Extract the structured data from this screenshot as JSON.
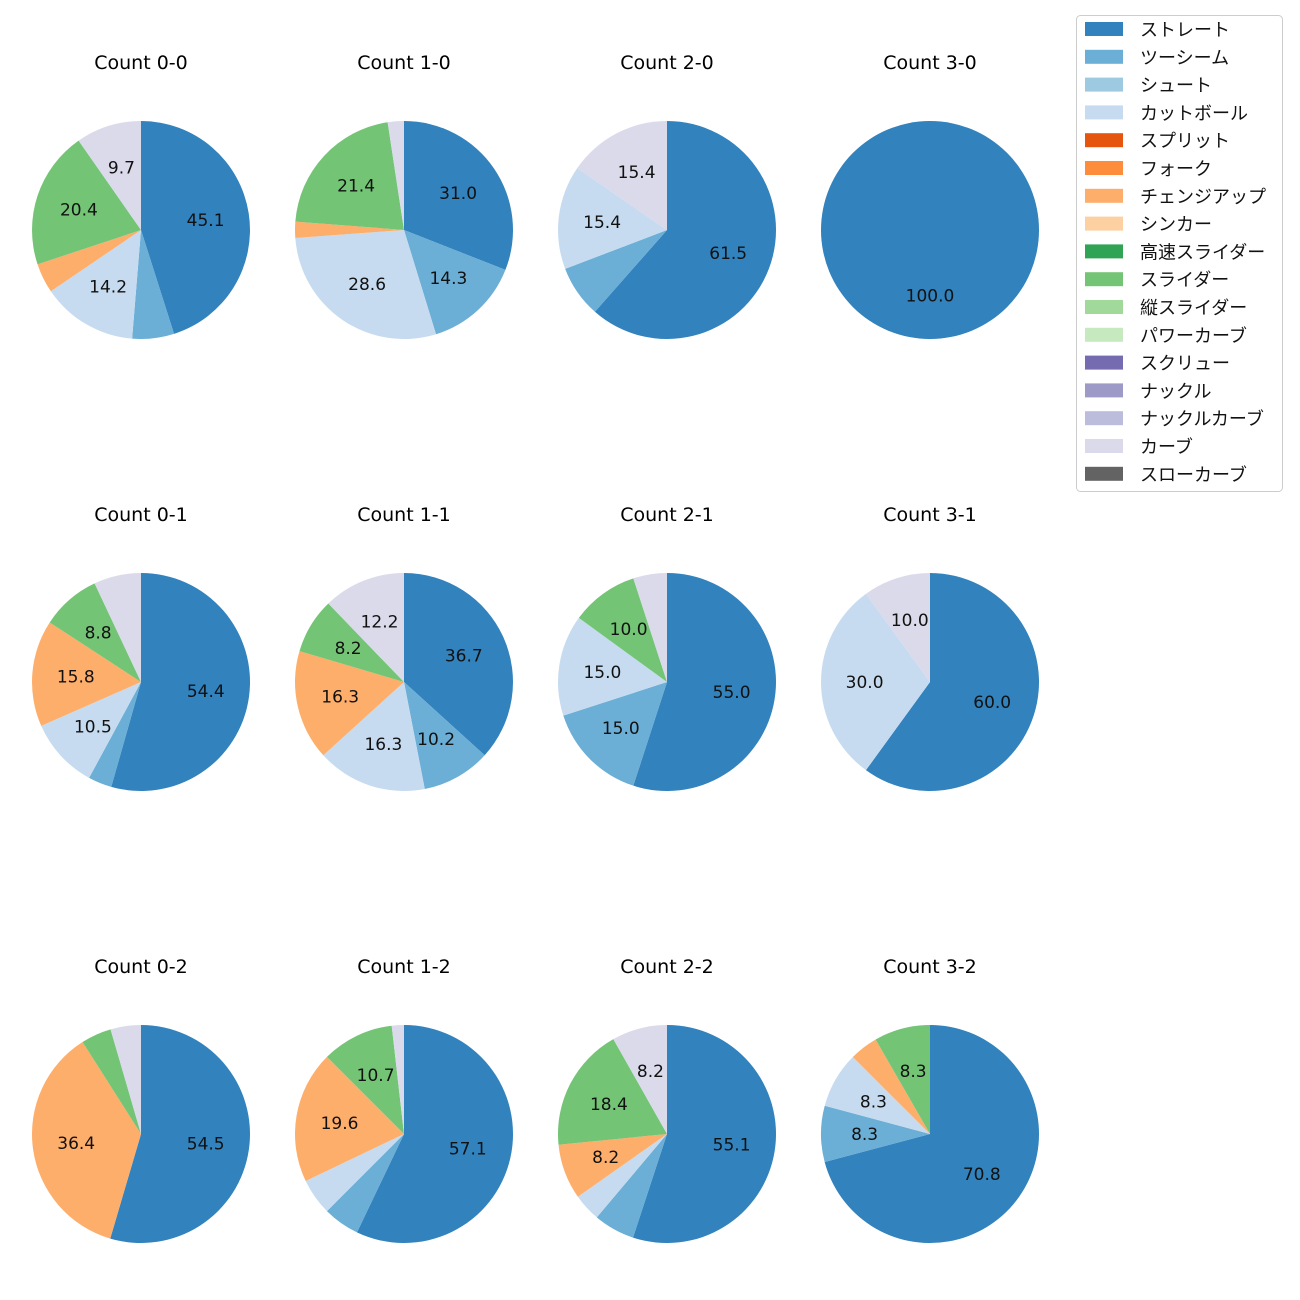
{
  "legend": {
    "items": [
      {
        "label": "ストレート",
        "color": "#3182bd"
      },
      {
        "label": "ツーシーム",
        "color": "#6baed6"
      },
      {
        "label": "シュート",
        "color": "#9ecae1"
      },
      {
        "label": "カットボール",
        "color": "#c6dbef"
      },
      {
        "label": "スプリット",
        "color": "#e6550d"
      },
      {
        "label": "フォーク",
        "color": "#fd8d3c"
      },
      {
        "label": "チェンジアップ",
        "color": "#fdae6b"
      },
      {
        "label": "シンカー",
        "color": "#fdd0a2"
      },
      {
        "label": "高速スライダー",
        "color": "#31a354"
      },
      {
        "label": "スライダー",
        "color": "#74c476"
      },
      {
        "label": "縦スライダー",
        "color": "#a1d99b"
      },
      {
        "label": "パワーカーブ",
        "color": "#c7e9c0"
      },
      {
        "label": "スクリュー",
        "color": "#756bb1"
      },
      {
        "label": "ナックル",
        "color": "#9e9ac8"
      },
      {
        "label": "ナックルカーブ",
        "color": "#bcbddc"
      },
      {
        "label": "カーブ",
        "color": "#dadaeb"
      },
      {
        "label": "スローカーブ",
        "color": "#636363"
      }
    ]
  },
  "chart_data": [
    {
      "type": "pie",
      "title": "Count 0-0",
      "slices": [
        {
          "name": "ストレート",
          "value": 45.1,
          "label": "45.1"
        },
        {
          "name": "ツーシーム",
          "value": 6.2,
          "label": ""
        },
        {
          "name": "カットボール",
          "value": 14.2,
          "label": "14.2"
        },
        {
          "name": "チェンジアップ",
          "value": 4.4,
          "label": ""
        },
        {
          "name": "スライダー",
          "value": 20.4,
          "label": "20.4"
        },
        {
          "name": "カーブ",
          "value": 9.7,
          "label": "9.7"
        }
      ]
    },
    {
      "type": "pie",
      "title": "Count 1-0",
      "slices": [
        {
          "name": "ストレート",
          "value": 31.0,
          "label": "31.0"
        },
        {
          "name": "ツーシーム",
          "value": 14.3,
          "label": "14.3"
        },
        {
          "name": "カットボール",
          "value": 28.6,
          "label": "28.6"
        },
        {
          "name": "チェンジアップ",
          "value": 2.4,
          "label": ""
        },
        {
          "name": "スライダー",
          "value": 21.4,
          "label": "21.4"
        },
        {
          "name": "カーブ",
          "value": 2.4,
          "label": ""
        }
      ]
    },
    {
      "type": "pie",
      "title": "Count 2-0",
      "slices": [
        {
          "name": "ストレート",
          "value": 61.5,
          "label": "61.5"
        },
        {
          "name": "ツーシーム",
          "value": 7.7,
          "label": ""
        },
        {
          "name": "カットボール",
          "value": 15.4,
          "label": "15.4"
        },
        {
          "name": "カーブ",
          "value": 15.4,
          "label": "15.4"
        }
      ]
    },
    {
      "type": "pie",
      "title": "Count 3-0",
      "slices": [
        {
          "name": "ストレート",
          "value": 100.0,
          "label": "100.0"
        }
      ]
    },
    {
      "type": "pie",
      "title": "Count 0-1",
      "slices": [
        {
          "name": "ストレート",
          "value": 54.4,
          "label": "54.4"
        },
        {
          "name": "ツーシーム",
          "value": 3.5,
          "label": ""
        },
        {
          "name": "カットボール",
          "value": 10.5,
          "label": "10.5"
        },
        {
          "name": "チェンジアップ",
          "value": 15.8,
          "label": "15.8"
        },
        {
          "name": "スライダー",
          "value": 8.8,
          "label": "8.8"
        },
        {
          "name": "カーブ",
          "value": 7.0,
          "label": ""
        }
      ]
    },
    {
      "type": "pie",
      "title": "Count 1-1",
      "slices": [
        {
          "name": "ストレート",
          "value": 36.7,
          "label": "36.7"
        },
        {
          "name": "ツーシーム",
          "value": 10.2,
          "label": "10.2"
        },
        {
          "name": "カットボール",
          "value": 16.3,
          "label": "16.3"
        },
        {
          "name": "チェンジアップ",
          "value": 16.3,
          "label": "16.3"
        },
        {
          "name": "スライダー",
          "value": 8.2,
          "label": "8.2"
        },
        {
          "name": "カーブ",
          "value": 12.2,
          "label": "12.2"
        }
      ]
    },
    {
      "type": "pie",
      "title": "Count 2-1",
      "slices": [
        {
          "name": "ストレート",
          "value": 55.0,
          "label": "55.0"
        },
        {
          "name": "ツーシーム",
          "value": 15.0,
          "label": "15.0"
        },
        {
          "name": "カットボール",
          "value": 15.0,
          "label": "15.0"
        },
        {
          "name": "スライダー",
          "value": 10.0,
          "label": "10.0"
        },
        {
          "name": "カーブ",
          "value": 5.0,
          "label": ""
        }
      ]
    },
    {
      "type": "pie",
      "title": "Count 3-1",
      "slices": [
        {
          "name": "ストレート",
          "value": 60.0,
          "label": "60.0"
        },
        {
          "name": "カットボール",
          "value": 30.0,
          "label": "30.0"
        },
        {
          "name": "カーブ",
          "value": 10.0,
          "label": "10.0"
        }
      ]
    },
    {
      "type": "pie",
      "title": "Count 0-2",
      "slices": [
        {
          "name": "ストレート",
          "value": 54.5,
          "label": "54.5"
        },
        {
          "name": "チェンジアップ",
          "value": 36.4,
          "label": "36.4"
        },
        {
          "name": "スライダー",
          "value": 4.5,
          "label": ""
        },
        {
          "name": "カーブ",
          "value": 4.5,
          "label": ""
        }
      ]
    },
    {
      "type": "pie",
      "title": "Count 1-2",
      "slices": [
        {
          "name": "ストレート",
          "value": 57.1,
          "label": "57.1"
        },
        {
          "name": "ツーシーム",
          "value": 5.4,
          "label": ""
        },
        {
          "name": "カットボール",
          "value": 5.4,
          "label": ""
        },
        {
          "name": "チェンジアップ",
          "value": 19.6,
          "label": "19.6"
        },
        {
          "name": "スライダー",
          "value": 10.7,
          "label": "10.7"
        },
        {
          "name": "カーブ",
          "value": 1.8,
          "label": ""
        }
      ]
    },
    {
      "type": "pie",
      "title": "Count 2-2",
      "slices": [
        {
          "name": "ストレート",
          "value": 55.1,
          "label": "55.1"
        },
        {
          "name": "ツーシーム",
          "value": 6.1,
          "label": ""
        },
        {
          "name": "カットボール",
          "value": 4.1,
          "label": ""
        },
        {
          "name": "チェンジアップ",
          "value": 8.2,
          "label": "8.2"
        },
        {
          "name": "スライダー",
          "value": 18.4,
          "label": "18.4"
        },
        {
          "name": "カーブ",
          "value": 8.2,
          "label": "8.2"
        }
      ]
    },
    {
      "type": "pie",
      "title": "Count 3-2",
      "slices": [
        {
          "name": "ストレート",
          "value": 70.8,
          "label": "70.8"
        },
        {
          "name": "ツーシーム",
          "value": 8.3,
          "label": "8.3"
        },
        {
          "name": "カットボール",
          "value": 8.3,
          "label": "8.3"
        },
        {
          "name": "チェンジアップ",
          "value": 4.2,
          "label": ""
        },
        {
          "name": "スライダー",
          "value": 8.3,
          "label": "8.3"
        }
      ]
    }
  ]
}
